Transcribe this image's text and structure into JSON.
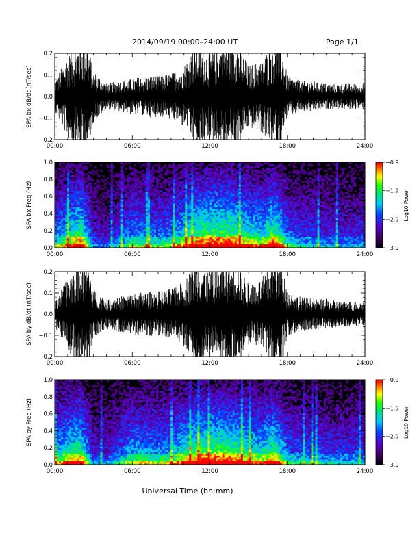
{
  "header": {
    "title": "2014/09/19   00:00–24:00 UT",
    "page": "Page 1/1"
  },
  "footer": {
    "xlabel": "Universal Time (hh:mm)"
  },
  "chart_data": [
    {
      "type": "line",
      "panel": "bx-dbdt",
      "ylabel": "SPA bx dB/dt (nT/sec)",
      "ylim": [
        -0.2,
        0.2
      ],
      "yticks": [
        -0.2,
        -0.1,
        0.0,
        0.1,
        0.2
      ],
      "ytick_labels": [
        "−0.2",
        "−0.1",
        "0.0",
        "0.1",
        "0.2"
      ],
      "xlim": [
        0,
        24
      ],
      "xticks": [
        0,
        6,
        12,
        18,
        24
      ],
      "xtick_labels": [
        "00:00",
        "06:00",
        "12:00",
        "18:00",
        "24:00"
      ],
      "series": [
        {
          "x": [
            0,
            1,
            2,
            2.5,
            3,
            4,
            5,
            6,
            7,
            8,
            9,
            10,
            11,
            12,
            13,
            14,
            15,
            16,
            17,
            17.5,
            18,
            19,
            20,
            21,
            22,
            23,
            24
          ],
          "amplitude": [
            0.06,
            0.16,
            0.22,
            0.22,
            0.1,
            0.05,
            0.06,
            0.07,
            0.08,
            0.08,
            0.09,
            0.12,
            0.22,
            0.16,
            0.22,
            0.22,
            0.12,
            0.14,
            0.22,
            0.22,
            0.08,
            0.06,
            0.06,
            0.05,
            0.05,
            0.05,
            0.05
          ]
        }
      ]
    },
    {
      "type": "heatmap",
      "panel": "bx-freq",
      "ylabel": "SPA bx Freq (Hz)",
      "ylim": [
        0,
        1.0
      ],
      "yticks": [
        0.0,
        0.2,
        0.4,
        0.6,
        0.8,
        1.0
      ],
      "ytick_labels": [
        "0.0",
        "0.2",
        "0.4",
        "0.6",
        "0.8",
        "1.0"
      ],
      "xlim": [
        0,
        24
      ],
      "xticks": [
        0,
        6,
        12,
        18,
        24
      ],
      "xtick_labels": [
        "00:00",
        "06:00",
        "12:00",
        "18:00",
        "24:00"
      ],
      "colorbar": {
        "label": "Log10 Power",
        "range": [
          -3.9,
          -0.9
        ],
        "ticks": [
          -0.9,
          -1.9,
          -2.9,
          -3.9
        ],
        "tick_labels": [
          "−0.9",
          "−1.9",
          "−2.9",
          "−3.9"
        ]
      },
      "activity": {
        "x": [
          0,
          1,
          2,
          3,
          4,
          5,
          6,
          7,
          8,
          9,
          10,
          11,
          12,
          13,
          14,
          15,
          16,
          17,
          18,
          19,
          20,
          21,
          22,
          23,
          24
        ],
        "level": [
          0.55,
          0.75,
          0.9,
          0.35,
          0.3,
          0.45,
          0.6,
          0.6,
          0.55,
          0.6,
          0.75,
          0.9,
          0.95,
          0.95,
          0.9,
          0.8,
          0.75,
          0.95,
          0.55,
          0.45,
          0.45,
          0.4,
          0.4,
          0.4,
          0.4
        ]
      }
    },
    {
      "type": "line",
      "panel": "by-dbdt",
      "ylabel": "SPA by dB/dt (nT/sec)",
      "ylim": [
        -0.2,
        0.2
      ],
      "yticks": [
        -0.2,
        -0.1,
        0.0,
        0.1,
        0.2
      ],
      "ytick_labels": [
        "−0.2",
        "−0.1",
        "0.0",
        "0.1",
        "0.2"
      ],
      "xlim": [
        0,
        24
      ],
      "xticks": [
        0,
        6,
        12,
        18,
        24
      ],
      "xtick_labels": [
        "00:00",
        "06:00",
        "12:00",
        "18:00",
        "24:00"
      ],
      "series": [
        {
          "x": [
            0,
            1,
            2,
            2.5,
            3,
            4,
            5,
            6,
            7,
            8,
            9,
            10,
            11,
            12,
            13,
            14,
            15,
            16,
            17,
            17.5,
            18,
            19,
            20,
            21,
            22,
            23,
            24
          ],
          "amplitude": [
            0.05,
            0.14,
            0.22,
            0.22,
            0.1,
            0.06,
            0.07,
            0.08,
            0.09,
            0.09,
            0.1,
            0.13,
            0.22,
            0.16,
            0.2,
            0.22,
            0.12,
            0.14,
            0.22,
            0.22,
            0.09,
            0.07,
            0.06,
            0.06,
            0.05,
            0.05,
            0.05
          ]
        }
      ]
    },
    {
      "type": "heatmap",
      "panel": "by-freq",
      "ylabel": "SPA by Freq (Hz)",
      "ylim": [
        0,
        1.0
      ],
      "yticks": [
        0.0,
        0.2,
        0.4,
        0.6,
        0.8,
        1.0
      ],
      "ytick_labels": [
        "0.0",
        "0.2",
        "0.4",
        "0.6",
        "0.8",
        "1.0"
      ],
      "xlim": [
        0,
        24
      ],
      "xticks": [
        0,
        6,
        12,
        18,
        24
      ],
      "xtick_labels": [
        "00:00",
        "06:00",
        "12:00",
        "18:00",
        "24:00"
      ],
      "colorbar": {
        "label": "Log10 Power",
        "range": [
          -3.9,
          -0.9
        ],
        "ticks": [
          -0.9,
          -1.9,
          -2.9,
          -3.9
        ],
        "tick_labels": [
          "−0.9",
          "−1.9",
          "−2.9",
          "−3.9"
        ]
      },
      "activity": {
        "x": [
          0,
          1,
          2,
          3,
          4,
          5,
          6,
          7,
          8,
          9,
          10,
          11,
          12,
          13,
          14,
          15,
          16,
          17,
          18,
          19,
          20,
          21,
          22,
          23,
          24
        ],
        "level": [
          0.6,
          0.8,
          0.9,
          0.35,
          0.35,
          0.5,
          0.65,
          0.65,
          0.6,
          0.65,
          0.8,
          0.9,
          0.95,
          0.95,
          0.9,
          0.8,
          0.75,
          0.9,
          0.55,
          0.5,
          0.5,
          0.45,
          0.45,
          0.45,
          0.45
        ]
      }
    }
  ]
}
